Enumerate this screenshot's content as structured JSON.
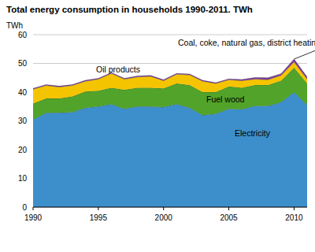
{
  "chart_data": {
    "type": "area",
    "stacked": true,
    "grid": true,
    "title": "Total energy consumption in households 1990-2011. TWh",
    "y_label": "TWh",
    "x": [
      1990,
      1991,
      1992,
      1993,
      1994,
      1995,
      1996,
      1997,
      1998,
      1999,
      2000,
      2001,
      2002,
      2003,
      2004,
      2005,
      2006,
      2007,
      2008,
      2009,
      2010,
      2011
    ],
    "xlim": [
      1990,
      2011
    ],
    "xticks": [
      1990,
      1995,
      2000,
      2005,
      2010
    ],
    "ylim": [
      0,
      60
    ],
    "yticks": [
      0,
      10,
      20,
      30,
      40,
      50,
      60
    ],
    "series": [
      {
        "name": "Electricity",
        "color": "#3d8fcb",
        "values": [
          30.5,
          32.8,
          32.8,
          33,
          34.5,
          35,
          35.8,
          34.2,
          35,
          35,
          34.8,
          35.8,
          34.5,
          32,
          32.5,
          34.2,
          34,
          35.2,
          35.2,
          36.5,
          40,
          35.5
        ]
      },
      {
        "name": "Fuel wood",
        "color": "#52a32a",
        "values": [
          5.5,
          5,
          5,
          5.5,
          5.7,
          5.5,
          5.7,
          6.6,
          6.5,
          6.5,
          6.5,
          7.2,
          8,
          8,
          7.5,
          7.8,
          7.5,
          7.3,
          7.3,
          7.5,
          8.5,
          7.5
        ]
      },
      {
        "name": "Oil products",
        "color": "#f5c400",
        "values": [
          5,
          4.5,
          4,
          3.8,
          3.6,
          4,
          5,
          3.7,
          3.8,
          4,
          2.7,
          3.2,
          3.5,
          3.8,
          3,
          2.3,
          2.5,
          2,
          1.8,
          1.8,
          2,
          1.5
        ]
      },
      {
        "name": "Coal, coke, natural gas, district heating",
        "color": "#7b3f9a",
        "values": [
          0.3,
          0.3,
          0.3,
          0.3,
          0.3,
          0.3,
          0.3,
          0.3,
          0.3,
          0.3,
          0.3,
          0.3,
          0.3,
          0.3,
          0.3,
          0.3,
          0.4,
          0.6,
          0.7,
          0.6,
          1.0,
          0.8
        ]
      }
    ]
  }
}
